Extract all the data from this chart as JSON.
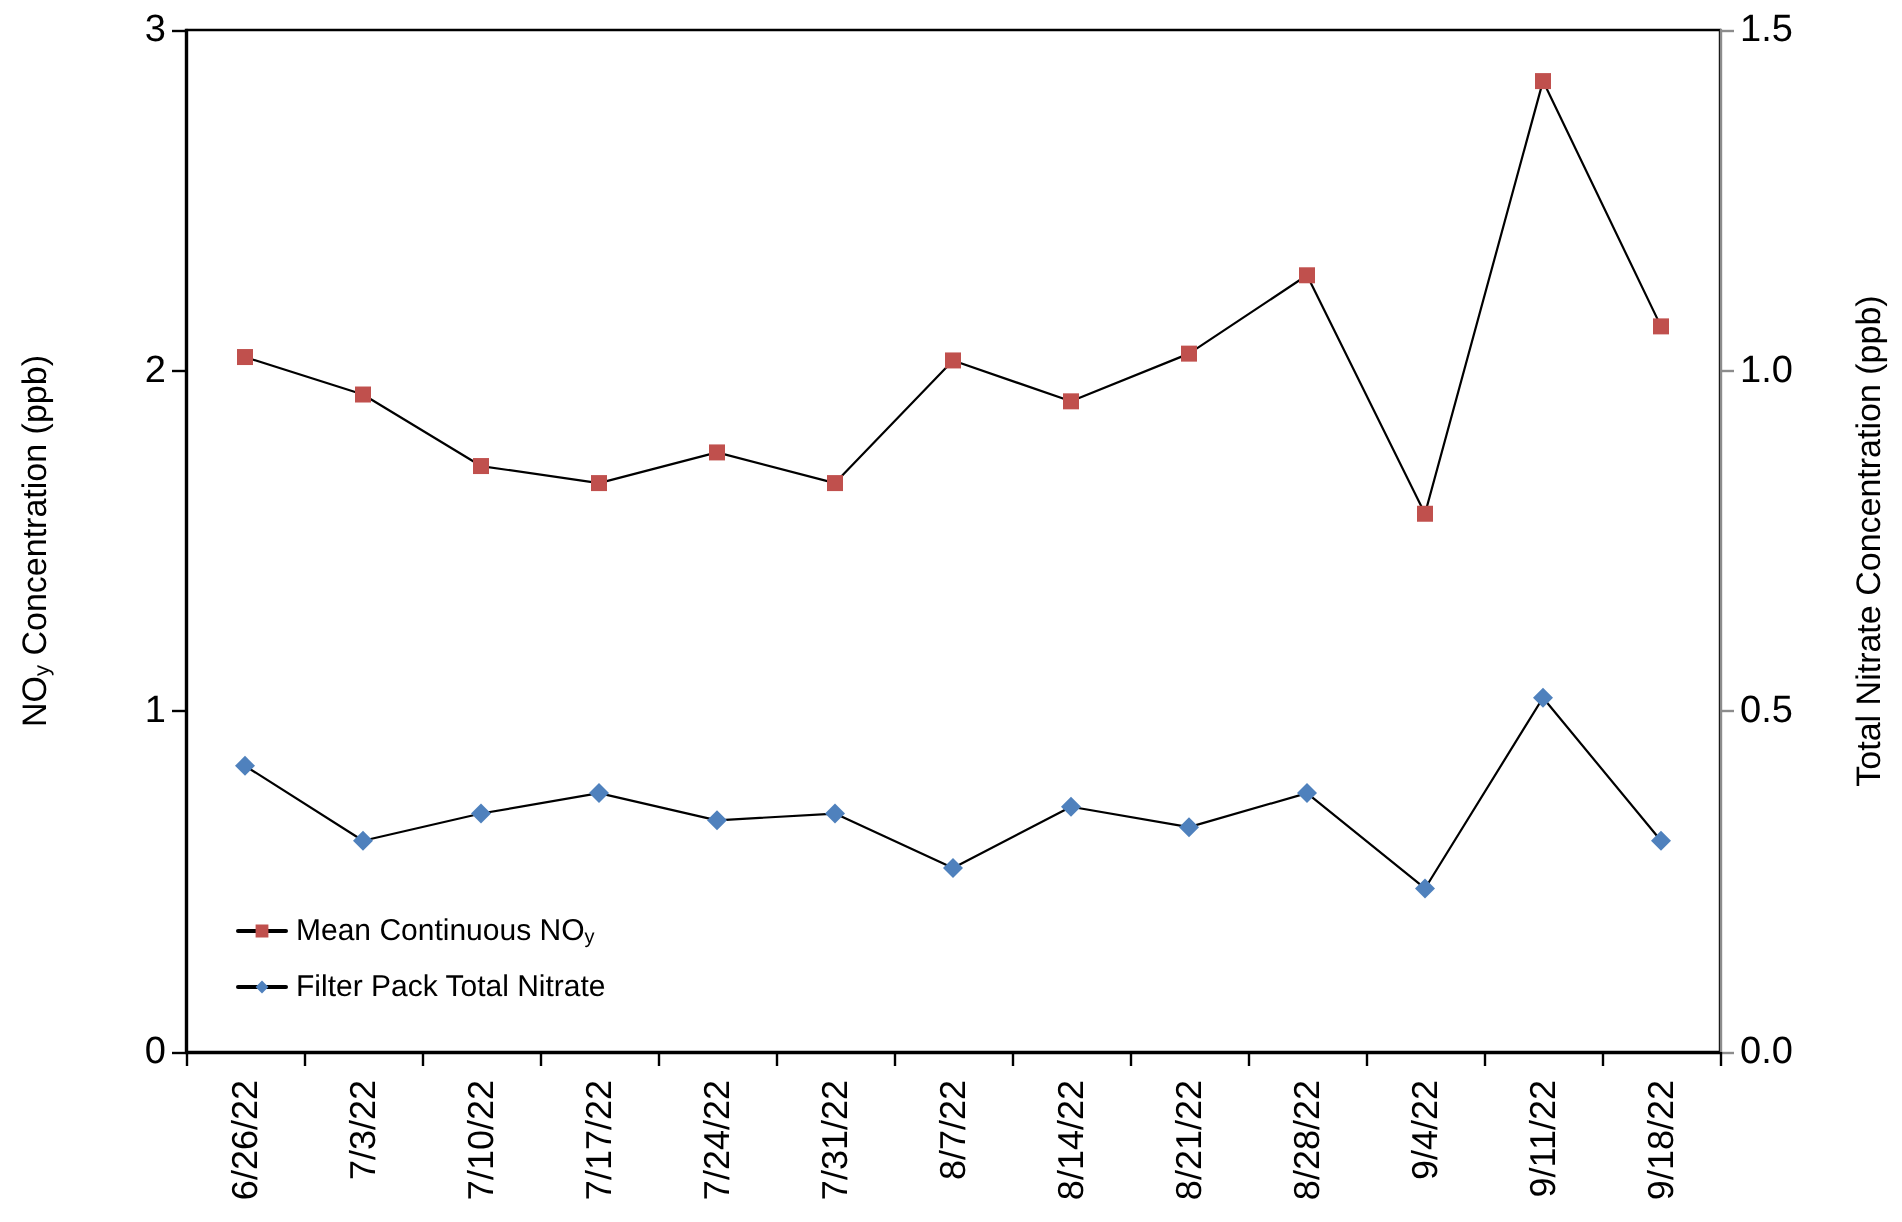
{
  "chart_data": {
    "type": "line",
    "ylabel": "NO$_{y}$ Concentration (ppb)",
    "y2label": "Total Nitrate Concentration (ppb)",
    "categories": [
      "6/26/22",
      "7/3/22",
      "7/10/22",
      "7/17/22",
      "7/24/22",
      "7/31/22",
      "8/7/22",
      "8/14/22",
      "8/21/22",
      "8/28/22",
      "9/4/22",
      "9/11/22",
      "9/18/22"
    ],
    "series": [
      {
        "name": "Mean Continuous NO$_{y}$",
        "color": "#c0504d",
        "marker": "square",
        "values": [
          2.04,
          1.93,
          1.72,
          1.67,
          1.76,
          1.67,
          2.03,
          1.91,
          2.05,
          2.28,
          1.58,
          2.85,
          2.13
        ]
      },
      {
        "name": "Filter Pack Total Nitrate",
        "color": "#4f81bd",
        "marker": "diamond",
        "axis": "y2",
        "values": [
          0.42,
          0.31,
          0.35,
          0.38,
          0.34,
          0.35,
          0.27,
          0.36,
          0.33,
          0.38,
          0.24,
          0.52,
          0.31
        ]
      }
    ],
    "ylim": [
      0,
      3
    ],
    "yticks": [
      0,
      1,
      2,
      3
    ],
    "y2lim": [
      0,
      1.5
    ],
    "y2ticks": [
      {
        "value": 0,
        "label": "0.0"
      },
      0.5,
      {
        "value": 1,
        "label": "1.0"
      },
      1.5
    ],
    "grid": false,
    "legend": "bottom left",
    "line_style": "solid"
  }
}
